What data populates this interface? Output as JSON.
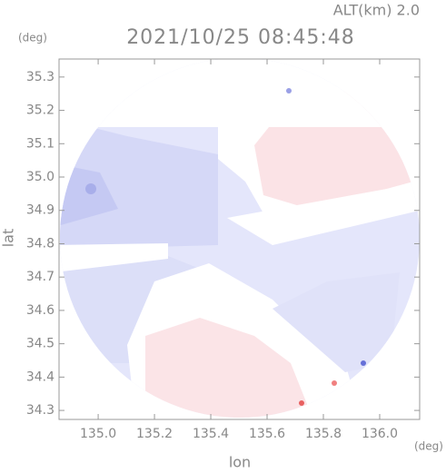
{
  "map": {
    "altitude_label": "ALT(km)  2.0",
    "title": "2021/10/25 08:45:48",
    "y_unit": "(deg)",
    "x_unit": "(deg)",
    "ylabel": "lat",
    "xlabel": "lon",
    "xlim": [
      134.861,
      136.142
    ],
    "ylim": [
      34.273,
      35.354
    ],
    "xticks": [
      {
        "value": 135.0,
        "label": "135.0"
      },
      135.2,
      135.4,
      135.6,
      135.8,
      {
        "value": 136.0,
        "label": "136.0"
      }
    ],
    "yticks": [
      35.3,
      35.2,
      35.1,
      {
        "value": 35.0,
        "label": "35.0"
      },
      34.9,
      34.8,
      34.7,
      34.6,
      34.5,
      34.4,
      34.3
    ]
  }
}
